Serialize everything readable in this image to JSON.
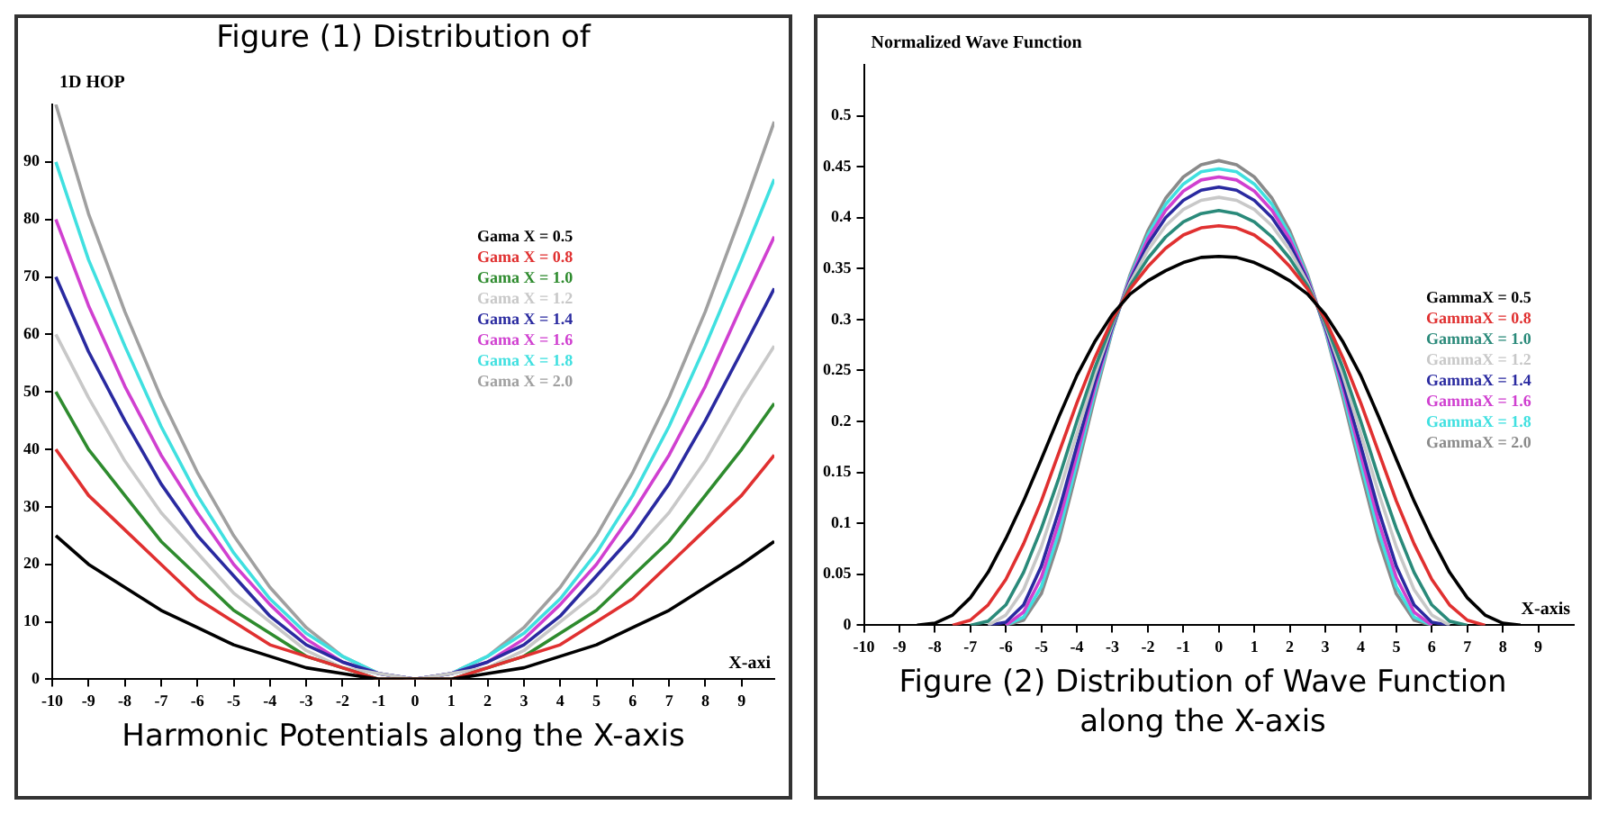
{
  "chart_data": [
    {
      "type": "line",
      "title": "Figure (1) Distribution of",
      "annotations": [
        "Harmonic Potentials along the X-axis"
      ],
      "xlabel": "X-axi",
      "ylabel": "1D HOP",
      "x": [
        -9.9,
        -9,
        -8,
        -7,
        -6,
        -5,
        -4,
        -3,
        -2,
        -1,
        0,
        1,
        2,
        3,
        4,
        5,
        6,
        7,
        8,
        9,
        9.9
      ],
      "xlim": [
        -10,
        9.9
      ],
      "xticks": [
        -10,
        -9,
        -8,
        -7,
        -6,
        -5,
        -4,
        -3,
        -2,
        -1,
        0,
        1,
        2,
        3,
        4,
        5,
        6,
        7,
        8,
        9
      ],
      "ylim": [
        0,
        100
      ],
      "yticks": [
        0,
        10,
        20,
        30,
        40,
        50,
        60,
        70,
        80,
        90
      ],
      "grid": false,
      "legend": "right",
      "marker": "none",
      "series": [
        {
          "name": "Gama X = 0.5",
          "color": "#000000",
          "values": [
            25,
            20,
            16,
            12,
            9,
            6,
            4,
            2,
            1,
            0,
            0,
            0,
            1,
            2,
            4,
            6,
            9,
            12,
            16,
            20,
            24
          ]
        },
        {
          "name": "Gama X = 0.8",
          "color": "#e03030",
          "values": [
            40,
            32,
            26,
            20,
            14,
            10,
            6,
            4,
            2,
            0,
            0,
            0,
            2,
            4,
            6,
            10,
            14,
            20,
            26,
            32,
            39
          ]
        },
        {
          "name": "Gama X = 1.0",
          "color": "#2e8b2e",
          "values": [
            50,
            40,
            32,
            24,
            18,
            12,
            8,
            4,
            2,
            0,
            0,
            0,
            2,
            4,
            8,
            12,
            18,
            24,
            32,
            40,
            48
          ]
        },
        {
          "name": "Gama X = 1.2",
          "color": "#c8c8c8",
          "values": [
            60,
            49,
            38,
            29,
            22,
            15,
            10,
            5,
            2,
            1,
            0,
            1,
            2,
            5,
            10,
            15,
            22,
            29,
            38,
            49,
            58
          ]
        },
        {
          "name": "Gama X = 1.4",
          "color": "#2a2aa0",
          "values": [
            70,
            57,
            45,
            34,
            25,
            18,
            11,
            6,
            3,
            1,
            0,
            1,
            3,
            6,
            11,
            18,
            25,
            34,
            45,
            57,
            68
          ]
        },
        {
          "name": "Gama X = 1.6",
          "color": "#d040d0",
          "values": [
            80,
            65,
            51,
            39,
            29,
            20,
            13,
            7,
            3,
            1,
            0,
            1,
            3,
            7,
            13,
            20,
            29,
            39,
            51,
            65,
            77
          ]
        },
        {
          "name": "Gama X = 1.8",
          "color": "#40e0e0",
          "values": [
            90,
            73,
            58,
            44,
            32,
            22,
            14,
            8,
            4,
            1,
            0,
            1,
            4,
            8,
            14,
            22,
            32,
            44,
            58,
            73,
            87
          ]
        },
        {
          "name": "Gama X = 2.0",
          "color": "#a0a0a0",
          "values": [
            100,
            81,
            64,
            49,
            36,
            25,
            16,
            9,
            4,
            1,
            0,
            1,
            4,
            9,
            16,
            25,
            36,
            49,
            64,
            81,
            97
          ]
        }
      ]
    },
    {
      "type": "line",
      "title": "Figure (2) Distribution of Wave Function along the X-axis",
      "xlabel": "X-axis",
      "ylabel": "Normalized Wave Function",
      "x": [
        -8.5,
        -8,
        -7.5,
        -7,
        -6.5,
        -6,
        -5.5,
        -5,
        -4.5,
        -4,
        -3.5,
        -3,
        -2.5,
        -2,
        -1.5,
        -1,
        -0.5,
        0,
        0.5,
        1,
        1.5,
        2,
        2.5,
        3,
        3.5,
        4,
        4.5,
        5,
        5.5,
        6,
        6.5,
        7,
        7.5,
        8,
        8.5
      ],
      "xlim": [
        -10,
        10
      ],
      "xticks": [
        -10,
        -9,
        -8,
        -7,
        -6,
        -5,
        -4,
        -3,
        -2,
        -1,
        0,
        1,
        2,
        3,
        4,
        5,
        6,
        7,
        8,
        9
      ],
      "ylim": [
        0,
        0.55
      ],
      "yticks": [
        0,
        0.05,
        0.1,
        0.15,
        0.2,
        0.25,
        0.3,
        0.35,
        0.4,
        0.45,
        0.5
      ],
      "grid": false,
      "legend": "right",
      "marker": "none",
      "series": [
        {
          "name": "GammaX = 0.5",
          "color": "#000000",
          "values": [
            0,
            0.002,
            0.01,
            0.027,
            0.052,
            0.085,
            0.122,
            0.163,
            0.205,
            0.245,
            0.278,
            0.305,
            0.325,
            0.338,
            0.348,
            0.356,
            0.361,
            0.362,
            0.361,
            0.356,
            0.348,
            0.338,
            0.325,
            0.305,
            0.278,
            0.245,
            0.205,
            0.163,
            0.122,
            0.085,
            0.052,
            0.027,
            0.01,
            0.002,
            0
          ]
        },
        {
          "name": "GammaX = 0.8",
          "color": "#e03030",
          "values": [
            null,
            null,
            0,
            0.005,
            0.02,
            0.045,
            0.08,
            0.122,
            0.17,
            0.218,
            0.262,
            0.3,
            0.33,
            0.352,
            0.37,
            0.383,
            0.39,
            0.392,
            0.39,
            0.383,
            0.37,
            0.352,
            0.33,
            0.3,
            0.262,
            0.218,
            0.17,
            0.122,
            0.08,
            0.045,
            0.02,
            0.005,
            0,
            null,
            null
          ]
        },
        {
          "name": "GammaX = 1.0",
          "color": "#2a8a7a",
          "values": [
            null,
            null,
            null,
            0,
            0.004,
            0.02,
            0.052,
            0.095,
            0.145,
            0.2,
            0.252,
            0.297,
            0.333,
            0.36,
            0.381,
            0.396,
            0.404,
            0.407,
            0.404,
            0.396,
            0.381,
            0.36,
            0.333,
            0.297,
            0.252,
            0.2,
            0.145,
            0.095,
            0.052,
            0.02,
            0.004,
            0,
            null,
            null,
            null
          ]
        },
        {
          "name": "GammaX = 1.2",
          "color": "#c8c8c8",
          "values": [
            null,
            null,
            null,
            null,
            0,
            0.01,
            0.035,
            0.077,
            0.13,
            0.188,
            0.245,
            0.295,
            0.336,
            0.368,
            0.392,
            0.408,
            0.417,
            0.42,
            0.417,
            0.408,
            0.392,
            0.368,
            0.336,
            0.295,
            0.245,
            0.188,
            0.13,
            0.077,
            0.035,
            0.01,
            0,
            null,
            null,
            null,
            null
          ]
        },
        {
          "name": "GammaX = 1.4",
          "color": "#2a2aa0",
          "values": [
            null,
            null,
            null,
            null,
            0,
            0.003,
            0.02,
            0.058,
            0.113,
            0.176,
            0.238,
            0.293,
            0.338,
            0.374,
            0.4,
            0.417,
            0.427,
            0.43,
            0.427,
            0.417,
            0.4,
            0.374,
            0.338,
            0.293,
            0.238,
            0.176,
            0.113,
            0.058,
            0.02,
            0.003,
            0,
            null,
            null,
            null,
            null
          ]
        },
        {
          "name": "GammaX = 1.6",
          "color": "#d040d0",
          "values": [
            null,
            null,
            null,
            null,
            null,
            0,
            0.013,
            0.047,
            0.102,
            0.167,
            0.233,
            0.292,
            0.34,
            0.379,
            0.407,
            0.426,
            0.437,
            0.44,
            0.437,
            0.426,
            0.407,
            0.379,
            0.34,
            0.292,
            0.233,
            0.167,
            0.102,
            0.047,
            0.013,
            0,
            null,
            null,
            null,
            null,
            null
          ]
        },
        {
          "name": "GammaX = 1.8",
          "color": "#40e0e0",
          "values": [
            null,
            null,
            null,
            null,
            null,
            0,
            0.008,
            0.038,
            0.092,
            0.159,
            0.228,
            0.29,
            0.342,
            0.383,
            0.413,
            0.433,
            0.445,
            0.448,
            0.445,
            0.433,
            0.413,
            0.383,
            0.342,
            0.29,
            0.228,
            0.159,
            0.092,
            0.038,
            0.008,
            0,
            null,
            null,
            null,
            null,
            null
          ]
        },
        {
          "name": "GammaX = 2.0",
          "color": "#8a8a8a",
          "values": [
            null,
            null,
            null,
            null,
            null,
            0,
            0.005,
            0.031,
            0.084,
            0.152,
            0.223,
            0.289,
            0.344,
            0.387,
            0.419,
            0.44,
            0.452,
            0.456,
            0.452,
            0.44,
            0.419,
            0.387,
            0.344,
            0.289,
            0.223,
            0.152,
            0.084,
            0.031,
            0.005,
            0,
            null,
            null,
            null,
            null,
            null
          ]
        }
      ]
    }
  ]
}
